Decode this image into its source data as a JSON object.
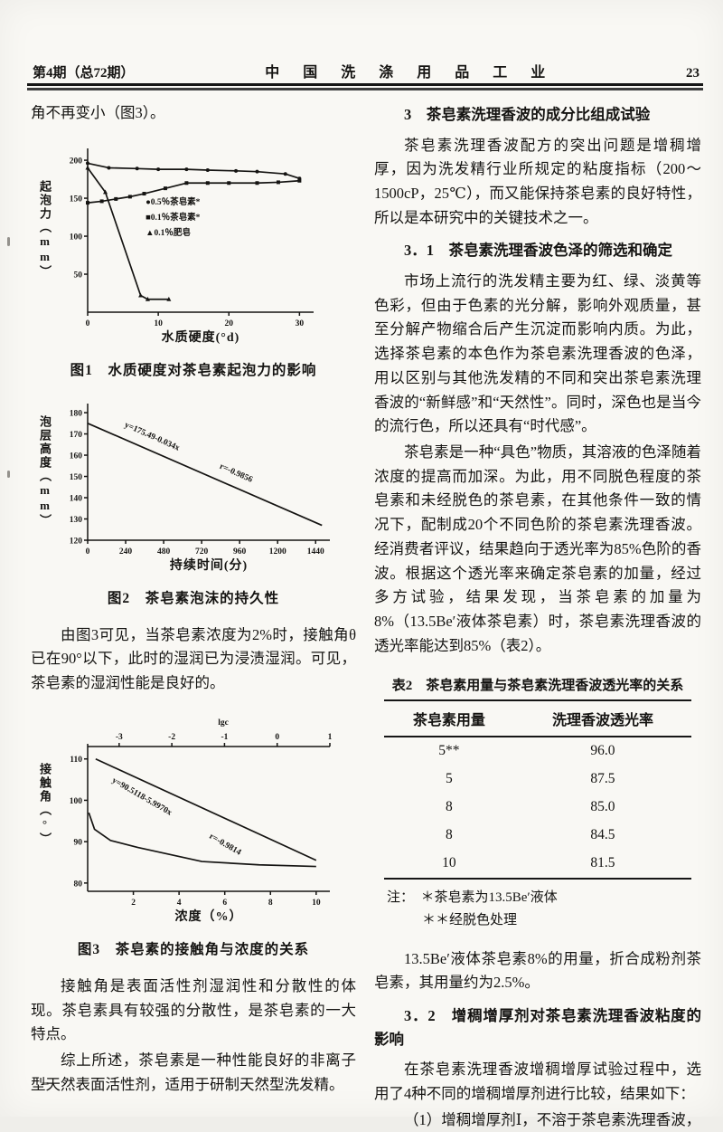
{
  "header": {
    "issue": "第4期（总72期）",
    "journal_title": "中 国 洗 涤 用 品 工 业",
    "page_number": "23"
  },
  "left_column": {
    "intro_line": "角不再变小（图3）。",
    "fig1_caption": "图1　水质硬度对茶皂素起泡力的影响",
    "fig2_caption": "图2　茶皂素泡沫的持久性",
    "fig3_caption": "图3　茶皂素的接触角与浓度的关系",
    "para_wetting": "由图3可见，当茶皂素浓度为2%时，接触角θ已在90°以下，此时的湿润已为浸渍湿润。可见，茶皂素的湿润性能是良好的。",
    "para_contact_angle": "接触角是表面活性剂湿润性和分散性的体现。茶皂素具有较强的分散性，是茶皂素的一大特点。",
    "para_summary": "综上所述，茶皂素是一种性能良好的非离子型天然表面活性剂，适用于研制天然型洗发精。"
  },
  "right_column": {
    "section3_heading": "3　茶皂素洗理香波的成分比组成试验",
    "para_3_intro": "茶皂素洗理香波配方的突出问题是增稠增厚，因为洗发精行业所规定的粘度指标（200～1500cP，25℃），而又能保持茶皂素的良好特性，所以是本研究中的关键技术之一。",
    "section31_heading": "3．1　茶皂素洗理香波色泽的筛选和确定",
    "para_31_color": "市场上流行的洗发精主要为红、绿、淡黄等色彩，但由于色素的光分解，影响外观质量，甚至分解产物缩合后产生沉淀而影响内质。为此，选择茶皂素的本色作为茶皂素洗理香波的色泽，用以区别与其他洗发精的不同和突出茶皂素洗理香波的“新鲜感”和“天然性”。同时，深色也是当今的流行色，所以还具有“时代感”。",
    "para_31_shade": "茶皂素是一种“具色”物质，其溶液的色泽随着浓度的提高而加深。为此，用不同脱色程度的茶皂素和未经脱色的茶皂素，在其他条件一致的情况下，配制成20个不同色阶的茶皂素洗理香波。经消费者评议，结果趋向于透光率为85%色阶的香波。根据这个透光率来确定茶皂素的加量，经过多方试验，结果发现，当茶皂素的加量为8%（13.5Be′液体茶皂素）时，茶皂素洗理香波的透光率能达到85%（表2）。",
    "para_amount": "13.5Be′液体茶皂素8%的用量，折合成粉剂茶皂素，其用量约为2.5%。",
    "section32_heading": "3．2　增稠增厚剂对茶皂素洗理香波粘度的影响",
    "para_32_compare": "在茶皂素洗理香波增稠增厚试验过程中，选用了4种不同的增稠增厚剂进行比较，结果如下：",
    "para_32_item1": "（1）增稠增厚剂Ⅰ，不溶于茶皂素洗理香波，"
  },
  "table2": {
    "title": "表2　茶皂素用量与茶皂素洗理香波透光率的关系",
    "headers": [
      "茶皂素用量",
      "洗理香波透光率"
    ],
    "rows": [
      [
        "5**",
        "96.0"
      ],
      [
        "5",
        "87.5"
      ],
      [
        "8",
        "85.0"
      ],
      [
        "8",
        "84.5"
      ],
      [
        "10",
        "81.5"
      ]
    ],
    "note_line1": "注：　＊茶皂素为13.5Be′液体",
    "note_line2": "＊＊经脱色处理"
  },
  "chart_data": [
    {
      "type": "line",
      "title": "图1 水质硬度对茶皂素起泡力的影响",
      "xlabel": "水质硬度(°d)",
      "ylabel": "起泡力（mm）",
      "xlim": [
        0,
        32
      ],
      "ylim": [
        0,
        212
      ],
      "xticks": [
        0,
        10,
        20,
        30
      ],
      "yticks": [
        50,
        100,
        150,
        200
      ],
      "grid": false,
      "legend_position": "inside-center",
      "legend": {
        "x": 8.2,
        "y": 142,
        "items": [
          "●0.5％茶皂素*",
          "■0.1％茶皂素*",
          "▲0.1％肥皂"
        ]
      },
      "series": [
        {
          "name": "0.5％茶皂素*",
          "marker": "circle",
          "x": [
            0,
            3,
            7,
            10,
            14,
            17,
            21,
            24,
            28,
            30
          ],
          "y": [
            196,
            190,
            189,
            188,
            188,
            187,
            186,
            185,
            182,
            176
          ]
        },
        {
          "name": "0.1％茶皂素*",
          "marker": "square",
          "x": [
            0,
            2,
            4,
            6,
            8,
            11,
            14,
            17,
            20,
            24,
            27,
            30
          ],
          "y": [
            144,
            146,
            149,
            152,
            156,
            163,
            170,
            170,
            170,
            170,
            171,
            173
          ]
        },
        {
          "name": "0.1％肥皂",
          "marker": "triangle",
          "x": [
            0,
            2.5,
            7.5,
            8.5,
            11.5
          ],
          "y": [
            190,
            158,
            22,
            17,
            17
          ]
        }
      ]
    },
    {
      "type": "line",
      "title": "图2 茶皂素泡沫的持久性",
      "xlabel": "持续时间(分)",
      "ylabel": "泡层高度（mm）",
      "xlim": [
        0,
        1530
      ],
      "ylim": [
        120,
        183
      ],
      "xticks": [
        0,
        240,
        480,
        720,
        960,
        1200,
        1440
      ],
      "yticks": [
        120,
        130,
        140,
        150,
        160,
        170,
        180
      ],
      "grid": false,
      "series": [
        {
          "name": "泡层高度",
          "x": [
            0,
            1480
          ],
          "y": [
            175,
            127
          ]
        }
      ],
      "annotations": [
        {
          "text": "y=175.49-0.034x",
          "x": 230,
          "y": 173.5,
          "angle": 24
        },
        {
          "text": "r=-0.9856",
          "x": 830,
          "y": 154,
          "angle": 24
        }
      ]
    },
    {
      "type": "line",
      "title": "图3 茶皂素的接触角与浓度的关系",
      "xlabel": "浓度（%）",
      "ylabel": "接触角（°）",
      "top_axis": {
        "label": "lgc",
        "ticks": [
          "-3",
          "-2",
          "-1",
          "0",
          "1"
        ]
      },
      "xlim": [
        0,
        10.6
      ],
      "ylim": [
        78,
        113
      ],
      "xticks": [
        2,
        4,
        6,
        8,
        10
      ],
      "yticks": [
        80,
        90,
        100,
        110
      ],
      "grid": false,
      "series": [
        {
          "name": "接触角与lgc回归线",
          "x": [
            0.35,
            10
          ],
          "y": [
            110,
            85.5
          ]
        },
        {
          "name": "接触角与浓度曲线",
          "x": [
            0.05,
            0.3,
            1,
            2.2,
            5,
            7.5,
            10
          ],
          "y": [
            97,
            93,
            90.3,
            88.6,
            85.2,
            84.4,
            84
          ]
        }
      ],
      "annotations": [
        {
          "text": "y=90.5118-5.9970x",
          "x": 1.05,
          "y": 104.5,
          "angle": 30
        },
        {
          "text": "r=-0.9814",
          "x": 5.3,
          "y": 91,
          "angle": 30
        }
      ]
    }
  ]
}
